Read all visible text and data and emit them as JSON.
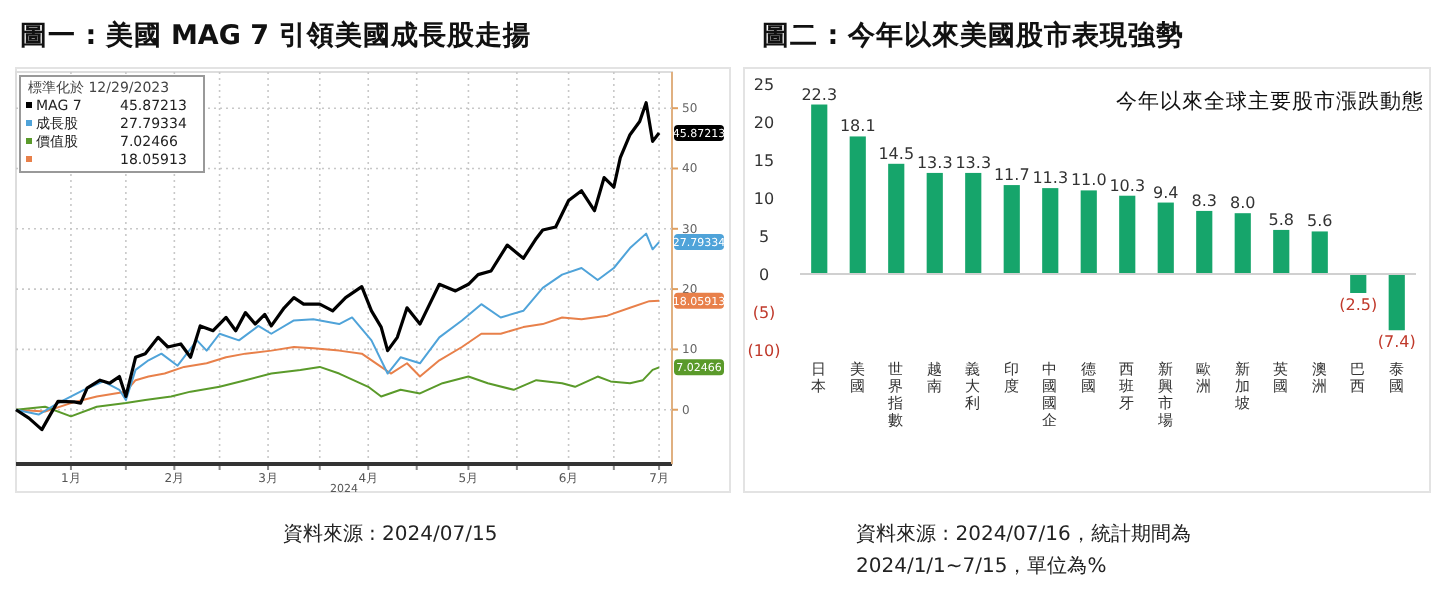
{
  "chart_data": [
    {
      "type": "line",
      "title": "圖一 : 美國 MAG 7 引領美國成長股走揚",
      "xlabel": "2024",
      "legend_title": "標準化於 12/29/2023",
      "legend": "top left",
      "grid": true,
      "xlim": [
        "2023-12-29",
        "2024-07-19"
      ],
      "ylim": [
        -9,
        56
      ],
      "yticks": [
        0,
        10,
        20,
        30,
        40,
        50
      ],
      "xticks": [
        {
          "value": "2024-01-15",
          "label": "1月"
        },
        {
          "value": "2024-02-01",
          "label": null
        },
        {
          "value": "2024-02-16",
          "label": "2月"
        },
        {
          "value": "2024-03-01",
          "label": null
        },
        {
          "value": "2024-03-16",
          "label": "3月"
        },
        {
          "value": "2024-04-01",
          "label": null
        },
        {
          "value": "2024-04-16",
          "label": "4月"
        },
        {
          "value": "2024-05-01",
          "label": null
        },
        {
          "value": "2024-05-17",
          "label": "5月"
        },
        {
          "value": "2024-06-01",
          "label": null
        },
        {
          "value": "2024-06-17",
          "label": "6月"
        },
        {
          "value": "2024-07-01",
          "label": null
        },
        {
          "value": "2024-07-15",
          "label": "7月"
        }
      ],
      "annotations": [
        "資料來源 : 2024/07/15"
      ],
      "series": [
        {
          "name": "MAG 7",
          "color": "#000000",
          "x": [
            "2023-12-29",
            "2024-01-02",
            "2024-01-06",
            "2024-01-08",
            "2024-01-11",
            "2024-01-16",
            "2024-01-18",
            "2024-01-20",
            "2024-01-24",
            "2024-01-27",
            "2024-01-30",
            "2024-02-01",
            "2024-02-04",
            "2024-02-07",
            "2024-02-11",
            "2024-02-14",
            "2024-02-18",
            "2024-02-21",
            "2024-02-24",
            "2024-02-28",
            "2024-03-03",
            "2024-03-06",
            "2024-03-09",
            "2024-03-12",
            "2024-03-15",
            "2024-03-17",
            "2024-03-21",
            "2024-03-24",
            "2024-03-27",
            "2024-04-01",
            "2024-04-05",
            "2024-04-09",
            "2024-04-14",
            "2024-04-17",
            "2024-04-20",
            "2024-04-22",
            "2024-04-25",
            "2024-04-28",
            "2024-05-02",
            "2024-05-08",
            "2024-05-13",
            "2024-05-17",
            "2024-05-20",
            "2024-05-24",
            "2024-05-29",
            "2024-06-03",
            "2024-06-07",
            "2024-06-09",
            "2024-06-13",
            "2024-06-17",
            "2024-06-21",
            "2024-06-25",
            "2024-06-28",
            "2024-07-01",
            "2024-07-03",
            "2024-07-06",
            "2024-07-09",
            "2024-07-11",
            "2024-07-13",
            "2024-07-15"
          ],
          "values": [
            0,
            -1.4,
            -3.3,
            -1.4,
            1.4,
            1.3,
            1.1,
            3.6,
            4.9,
            4.4,
            5.5,
            2.2,
            8.7,
            9.3,
            12.0,
            10.4,
            10.9,
            8.7,
            13.9,
            13.1,
            15.3,
            13.1,
            16.1,
            14.2,
            15.8,
            13.9,
            16.9,
            18.6,
            17.5,
            17.5,
            16.4,
            18.6,
            20.4,
            16.4,
            13.7,
            9.8,
            12.0,
            16.9,
            14.2,
            20.8,
            19.7,
            20.8,
            22.4,
            23.0,
            27.3,
            25.1,
            28.4,
            29.8,
            30.3,
            34.7,
            36.3,
            33.0,
            38.5,
            36.9,
            41.8,
            45.6,
            47.8,
            50.9,
            44.5,
            45.87213
          ],
          "value_labels": [
            null,
            null,
            null,
            null,
            null,
            null,
            null,
            null,
            null,
            null,
            null,
            null,
            null,
            null,
            null,
            null,
            null,
            null,
            null,
            null,
            null,
            null,
            null,
            null,
            null,
            null,
            null,
            null,
            null,
            null,
            null,
            null,
            null,
            null,
            null,
            null,
            null,
            null,
            null,
            null,
            null,
            null,
            null,
            null,
            null,
            null,
            null,
            null,
            null,
            null,
            null,
            null,
            null,
            null,
            null,
            null,
            null,
            null,
            null,
            "45.87213"
          ]
        },
        {
          "name": "成長股",
          "color": "#4fa3d9",
          "x": [
            "2023-12-29",
            "2024-01-05",
            "2024-01-11",
            "2024-01-19",
            "2024-01-25",
            "2024-01-30",
            "2024-02-01",
            "2024-02-04",
            "2024-02-08",
            "2024-02-12",
            "2024-02-17",
            "2024-02-23",
            "2024-02-26",
            "2024-03-01",
            "2024-03-07",
            "2024-03-13",
            "2024-03-17",
            "2024-03-24",
            "2024-03-30",
            "2024-04-07",
            "2024-04-11",
            "2024-04-17",
            "2024-04-22",
            "2024-04-26",
            "2024-05-02",
            "2024-05-08",
            "2024-05-15",
            "2024-05-21",
            "2024-05-27",
            "2024-06-03",
            "2024-06-09",
            "2024-06-15",
            "2024-06-21",
            "2024-06-26",
            "2024-07-01",
            "2024-07-06",
            "2024-07-11",
            "2024-07-13",
            "2024-07-15"
          ],
          "values": [
            0,
            -0.8,
            1.1,
            3.3,
            4.7,
            3.3,
            1.6,
            6.6,
            8.2,
            9.3,
            7.3,
            11.5,
            9.8,
            12.6,
            11.5,
            13.9,
            12.6,
            14.8,
            15.0,
            14.2,
            15.3,
            11.5,
            6.0,
            8.7,
            7.7,
            12.0,
            14.8,
            17.5,
            15.3,
            16.4,
            20.2,
            22.4,
            23.5,
            21.5,
            23.5,
            26.8,
            29.2,
            26.6,
            27.79334
          ],
          "value_labels": [
            null,
            null,
            null,
            null,
            null,
            null,
            null,
            null,
            null,
            null,
            null,
            null,
            null,
            null,
            null,
            null,
            null,
            null,
            null,
            null,
            null,
            null,
            null,
            null,
            null,
            null,
            null,
            null,
            null,
            null,
            null,
            null,
            null,
            null,
            null,
            null,
            null,
            null,
            "27.79334"
          ]
        },
        {
          "name": "價值股",
          "color": "#5a9a2a",
          "x": [
            "2023-12-29",
            "2024-01-07",
            "2024-01-15",
            "2024-01-23",
            "2024-02-01",
            "2024-02-07",
            "2024-02-15",
            "2024-02-21",
            "2024-03-01",
            "2024-03-09",
            "2024-03-17",
            "2024-03-26",
            "2024-04-01",
            "2024-04-07",
            "2024-04-16",
            "2024-04-20",
            "2024-04-26",
            "2024-05-02",
            "2024-05-09",
            "2024-05-17",
            "2024-05-23",
            "2024-05-31",
            "2024-06-07",
            "2024-06-15",
            "2024-06-19",
            "2024-06-26",
            "2024-06-30",
            "2024-07-06",
            "2024-07-10",
            "2024-07-13",
            "2024-07-15"
          ],
          "values": [
            0,
            0.5,
            -1.1,
            0.5,
            1.1,
            1.6,
            2.2,
            3.0,
            3.8,
            4.9,
            6.0,
            6.6,
            7.1,
            6.0,
            3.8,
            2.2,
            3.3,
            2.7,
            4.4,
            5.5,
            4.4,
            3.3,
            4.9,
            4.4,
            3.8,
            5.5,
            4.7,
            4.4,
            4.9,
            6.6,
            7.02466
          ],
          "value_labels": [
            null,
            null,
            null,
            null,
            null,
            null,
            null,
            null,
            null,
            null,
            null,
            null,
            null,
            null,
            null,
            null,
            null,
            null,
            null,
            null,
            null,
            null,
            null,
            null,
            null,
            null,
            null,
            null,
            null,
            null,
            "7.02466"
          ]
        },
        {
          "color": "#e8804a",
          "x": [
            "2023-12-29",
            "2024-01-07",
            "2024-01-15",
            "2024-01-23",
            "2024-02-01",
            "2024-02-04",
            "2024-02-08",
            "2024-02-13",
            "2024-02-19",
            "2024-02-26",
            "2024-03-03",
            "2024-03-09",
            "2024-03-17",
            "2024-03-24",
            "2024-03-30",
            "2024-04-07",
            "2024-04-14",
            "2024-04-20",
            "2024-04-23",
            "2024-04-28",
            "2024-05-02",
            "2024-05-08",
            "2024-05-15",
            "2024-05-21",
            "2024-05-27",
            "2024-06-03",
            "2024-06-09",
            "2024-06-15",
            "2024-06-21",
            "2024-06-29",
            "2024-07-06",
            "2024-07-12",
            "2024-07-15"
          ],
          "values": [
            0,
            -0.3,
            1.1,
            2.2,
            3.0,
            4.9,
            5.5,
            6.0,
            7.1,
            7.7,
            8.7,
            9.3,
            9.8,
            10.4,
            10.2,
            9.8,
            9.3,
            7.1,
            6.0,
            7.7,
            5.5,
            8.2,
            10.4,
            12.6,
            12.6,
            13.7,
            14.2,
            15.3,
            15.0,
            15.6,
            16.9,
            18.0,
            18.05913
          ],
          "value_labels": [
            null,
            null,
            null,
            null,
            null,
            null,
            null,
            null,
            null,
            null,
            null,
            null,
            null,
            null,
            null,
            null,
            null,
            null,
            null,
            null,
            null,
            null,
            null,
            null,
            null,
            null,
            null,
            null,
            null,
            null,
            null,
            null,
            "18.05913"
          ]
        }
      ]
    },
    {
      "type": "bar",
      "title": "圖二 : 今年以來美國股市表現強勢",
      "subtitle": "今年以來全球主要股市漲跌動態",
      "color": "#16a56b",
      "categories": [
        "日本",
        "美國",
        "世界指數",
        "越南",
        "義大利",
        "印度",
        "中國國企",
        "德國",
        "西班牙",
        "新興市場",
        "歐洲",
        "新加坡",
        "英國",
        "澳洲",
        "巴西",
        "泰國"
      ],
      "values": [
        22.3,
        18.1,
        14.5,
        13.3,
        13.3,
        11.7,
        11.3,
        11.0,
        10.3,
        9.4,
        8.3,
        8.0,
        5.8,
        5.6,
        -2.5,
        -7.4
      ],
      "value_labels": [
        "22.3",
        "18.1",
        "14.5",
        "13.3",
        "13.3",
        "11.7",
        "11.3",
        "11.0",
        "10.3",
        "9.4",
        "8.3",
        "8.0",
        "5.8",
        "5.6",
        "(2.5)",
        "(7.4)"
      ],
      "ylim": [
        -10,
        25
      ],
      "yticks": [
        {
          "value": -10,
          "label": "(10)"
        },
        {
          "value": -5,
          "label": "(5)"
        },
        0,
        5,
        10,
        15,
        20,
        25
      ],
      "annotations": [
        "資料來源 : 2024/07/16，統計期間為",
        "2024/1/1~7/15，單位為%"
      ]
    }
  ]
}
